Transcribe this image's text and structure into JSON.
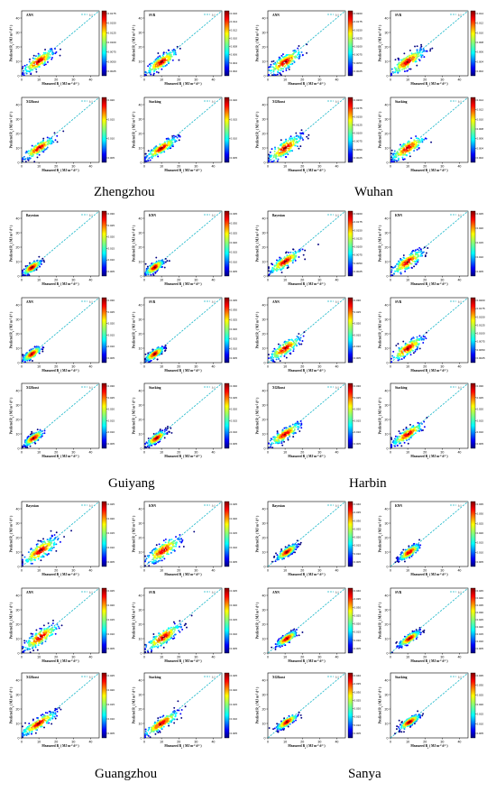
{
  "figure": {
    "axis": {
      "xlabel": "Measured R",
      "xlabel_sub": "s",
      "xlabel_unit": " ( MJ m",
      "xlabel_unit_sup1": "-2",
      "xlabel_unit_mid": " d",
      "xlabel_unit_sup2": "-1",
      "xlabel_end": " )",
      "ylabel": "Predicted R",
      "ylabel_sub": "s",
      "ylabel_unit": " ( MJ m",
      "ylabel_unit_sup1": "-2",
      "ylabel_unit_mid": " d",
      "ylabel_unit_sup2": "-1",
      "ylabel_end": " )",
      "xlim": [
        0,
        45
      ],
      "ylim": [
        0,
        45
      ],
      "xticks": [
        "0",
        "10",
        "20",
        "30",
        "40"
      ],
      "yticks": [
        "0",
        "10",
        "20",
        "30",
        "40"
      ],
      "legend": "1:1",
      "legend_position": "top-right",
      "colormap": [
        "#00007f",
        "#0000ff",
        "#007fff",
        "#00ffff",
        "#7fff7f",
        "#ffff00",
        "#ff7f00",
        "#ff0000",
        "#7f0000"
      ]
    }
  },
  "chart_data": [
    {
      "type": "scatter",
      "city": "Zhengzhou",
      "model": "ANN",
      "title": "ANN",
      "center": [
        10,
        10
      ],
      "spread": [
        4.5,
        2.4
      ],
      "colorbar_ticks": [
        "0.0175",
        "0.0150",
        "0.0125",
        "0.0100",
        "0.0075",
        "0.0050",
        "0.0025"
      ]
    },
    {
      "type": "scatter",
      "city": "Zhengzhou",
      "model": "SVR",
      "title": "SVR",
      "center": [
        10,
        9.5
      ],
      "spread": [
        4.5,
        2.3
      ],
      "colorbar_ticks": [
        "0.016",
        "0.014",
        "0.012",
        "0.010",
        "0.008",
        "0.006",
        "0.004",
        "0.002"
      ]
    },
    {
      "type": "scatter",
      "city": "Zhengzhou",
      "model": "XGBoost",
      "title": "XGBoost",
      "center": [
        10,
        9.8
      ],
      "spread": [
        4.5,
        2.0
      ],
      "colorbar_ticks": [
        "0.020",
        "0.015",
        "0.010",
        "0.005"
      ]
    },
    {
      "type": "scatter",
      "city": "Zhengzhou",
      "model": "Stacking",
      "title": "Stacking",
      "center": [
        10,
        9.8
      ],
      "spread": [
        4.5,
        1.9
      ],
      "colorbar_ticks": [
        "0.020",
        "0.015",
        "0.010",
        "0.005"
      ]
    },
    {
      "type": "scatter",
      "city": "Wuhan",
      "model": "ANN",
      "title": "ANN",
      "center": [
        10,
        9.5
      ],
      "spread": [
        4.8,
        2.6
      ],
      "colorbar_ticks": [
        "0.0200",
        "0.0175",
        "0.0150",
        "0.0125",
        "0.0100",
        "0.0075",
        "0.0050",
        "0.0025"
      ]
    },
    {
      "type": "scatter",
      "city": "Wuhan",
      "model": "SVR",
      "title": "SVR",
      "center": [
        10,
        9.8
      ],
      "spread": [
        4.8,
        2.6
      ],
      "colorbar_ticks": [
        "0.014",
        "0.012",
        "0.010",
        "0.008",
        "0.006",
        "0.004",
        "0.002"
      ]
    },
    {
      "type": "scatter",
      "city": "Wuhan",
      "model": "XGBoost",
      "title": "XGBoost",
      "center": [
        10,
        9.8
      ],
      "spread": [
        4.8,
        2.8
      ],
      "colorbar_ticks": [
        "0.0200",
        "0.0175",
        "0.0150",
        "0.0125",
        "0.0100",
        "0.0075",
        "0.0050",
        "0.0025"
      ]
    },
    {
      "type": "scatter",
      "city": "Wuhan",
      "model": "Stacking",
      "title": "Stacking",
      "center": [
        10,
        9.8
      ],
      "spread": [
        4.8,
        2.6
      ],
      "colorbar_ticks": [
        "0.014",
        "0.012",
        "0.010",
        "0.008",
        "0.006",
        "0.004",
        "0.002"
      ]
    },
    {
      "type": "scatter",
      "city": "Guiyang",
      "model": "Bayesian",
      "title": "Bayesian",
      "center": [
        6,
        6
      ],
      "spread": [
        2.6,
        1.6
      ],
      "colorbar_ticks": [
        "0.030",
        "0.025",
        "0.020",
        "0.015",
        "0.010",
        "0.005"
      ]
    },
    {
      "type": "scatter",
      "city": "Guiyang",
      "model": "KNN",
      "title": "KNN",
      "center": [
        6,
        6
      ],
      "spread": [
        2.6,
        1.7
      ],
      "colorbar_ticks": [
        "0.035",
        "0.030",
        "0.025",
        "0.020",
        "0.015",
        "0.010",
        "0.005"
      ]
    },
    {
      "type": "scatter",
      "city": "Guiyang",
      "model": "ANN",
      "title": "ANN",
      "center": [
        6,
        6
      ],
      "spread": [
        2.6,
        1.6
      ],
      "colorbar_ticks": [
        "0.030",
        "0.025",
        "0.020",
        "0.015",
        "0.010",
        "0.005"
      ]
    },
    {
      "type": "scatter",
      "city": "Guiyang",
      "model": "SVR",
      "title": "SVR",
      "center": [
        6,
        6
      ],
      "spread": [
        2.6,
        1.6
      ],
      "colorbar_ticks": [
        "0.035",
        "0.030",
        "0.025",
        "0.020",
        "0.015",
        "0.010",
        "0.005"
      ]
    },
    {
      "type": "scatter",
      "city": "Guiyang",
      "model": "XGBoost",
      "title": "XGBoost",
      "center": [
        7,
        7
      ],
      "spread": [
        2.8,
        1.6
      ],
      "colorbar_ticks": [
        "0.030",
        "0.025",
        "0.020",
        "0.015",
        "0.010",
        "0.005"
      ]
    },
    {
      "type": "scatter",
      "city": "Guiyang",
      "model": "Stacking",
      "title": "Stacking",
      "center": [
        7,
        7
      ],
      "spread": [
        2.8,
        1.6
      ],
      "colorbar_ticks": [
        "0.030",
        "0.025",
        "0.020",
        "0.015",
        "0.010",
        "0.005"
      ]
    },
    {
      "type": "scatter",
      "city": "Harbin",
      "model": "Bayesian",
      "title": "Bayesian",
      "center": [
        10,
        10
      ],
      "spread": [
        4.5,
        2.2
      ],
      "colorbar_ticks": [
        "0.0200",
        "0.0175",
        "0.0150",
        "0.0125",
        "0.0100",
        "0.0075",
        "0.0050",
        "0.0025"
      ]
    },
    {
      "type": "scatter",
      "city": "Harbin",
      "model": "KNN",
      "title": "KNN",
      "center": [
        10,
        9.8
      ],
      "spread": [
        4.5,
        2.5
      ],
      "colorbar_ticks": [
        "0.025",
        "0.020",
        "0.015",
        "0.010",
        "0.005"
      ]
    },
    {
      "type": "scatter",
      "city": "Harbin",
      "model": "ANN",
      "title": "ANN",
      "center": [
        10,
        9.8
      ],
      "spread": [
        4.5,
        2.4
      ],
      "colorbar_ticks": [
        "0.030",
        "0.025",
        "0.020",
        "0.015",
        "0.010",
        "0.005"
      ]
    },
    {
      "type": "scatter",
      "city": "Harbin",
      "model": "SVR",
      "title": "SVR",
      "center": [
        10,
        9.8
      ],
      "spread": [
        4.5,
        2.4
      ],
      "colorbar_ticks": [
        "0.0200",
        "0.0175",
        "0.0150",
        "0.0125",
        "0.0100",
        "0.0075",
        "0.0050",
        "0.0025"
      ]
    },
    {
      "type": "scatter",
      "city": "Harbin",
      "model": "XGBoost",
      "title": "XGBoost",
      "center": [
        10,
        9.8
      ],
      "spread": [
        4.5,
        2.0
      ],
      "colorbar_ticks": [
        "0.030",
        "0.025",
        "0.020",
        "0.015",
        "0.010",
        "0.005"
      ]
    },
    {
      "type": "scatter",
      "city": "Harbin",
      "model": "Stacking",
      "title": "Stacking",
      "center": [
        10,
        9.8
      ],
      "spread": [
        4.5,
        2.0
      ],
      "colorbar_ticks": [
        "0.030",
        "0.025",
        "0.020",
        "0.015",
        "0.010",
        "0.005"
      ]
    },
    {
      "type": "scatter",
      "city": "Guangzhou",
      "model": "Bayesian",
      "title": "Bayesian",
      "center": [
        11,
        11
      ],
      "spread": [
        5.0,
        2.8
      ],
      "colorbar_ticks": [
        "0.025",
        "0.020",
        "0.015",
        "0.010",
        "0.005"
      ]
    },
    {
      "type": "scatter",
      "city": "Guangzhou",
      "model": "KNN",
      "title": "KNN",
      "center": [
        11,
        11
      ],
      "spread": [
        5.0,
        2.8
      ],
      "colorbar_ticks": [
        "0.025",
        "0.020",
        "0.015",
        "0.010",
        "0.005"
      ]
    },
    {
      "type": "scatter",
      "city": "Guangzhou",
      "model": "ANN",
      "title": "ANN",
      "center": [
        11,
        11
      ],
      "spread": [
        5.0,
        2.6
      ],
      "colorbar_ticks": [
        "0.025",
        "0.020",
        "0.015",
        "0.010",
        "0.005"
      ]
    },
    {
      "type": "scatter",
      "city": "Guangzhou",
      "model": "SVR",
      "title": "SVR",
      "center": [
        11,
        11
      ],
      "spread": [
        5.0,
        2.6
      ],
      "colorbar_ticks": [
        "0.025",
        "0.020",
        "0.015",
        "0.010",
        "0.005"
      ]
    },
    {
      "type": "scatter",
      "city": "Guangzhou",
      "model": "XGBoost",
      "title": "XGBoost",
      "center": [
        10,
        10
      ],
      "spread": [
        5.0,
        2.0
      ],
      "colorbar_ticks": [
        "0.025",
        "0.020",
        "0.015",
        "0.010",
        "0.005"
      ]
    },
    {
      "type": "scatter",
      "city": "Guangzhou",
      "model": "Stacking",
      "title": "Stacking",
      "center": [
        10,
        10
      ],
      "spread": [
        5.0,
        2.0
      ],
      "colorbar_ticks": [
        "0.025",
        "0.020",
        "0.015",
        "0.010",
        "0.005"
      ]
    },
    {
      "type": "scatter",
      "city": "Sanya",
      "model": "Bayesian",
      "title": "Bayesian",
      "center": [
        11,
        10
      ],
      "spread": [
        3.0,
        1.6
      ],
      "colorbar_ticks": [
        "0.040",
        "0.035",
        "0.030",
        "0.025",
        "0.020",
        "0.015",
        "0.010",
        "0.005"
      ]
    },
    {
      "type": "scatter",
      "city": "Sanya",
      "model": "KNN",
      "title": "KNN",
      "center": [
        11,
        10
      ],
      "spread": [
        3.0,
        1.8
      ],
      "colorbar_ticks": [
        "0.035",
        "0.030",
        "0.025",
        "0.020",
        "0.015",
        "0.010",
        "0.005"
      ]
    },
    {
      "type": "scatter",
      "city": "Sanya",
      "model": "ANN",
      "title": "ANN",
      "center": [
        11,
        10
      ],
      "spread": [
        3.0,
        1.6
      ],
      "colorbar_ticks": [
        "0.040",
        "0.035",
        "0.030",
        "0.025",
        "0.020",
        "0.015",
        "0.010",
        "0.005"
      ]
    },
    {
      "type": "scatter",
      "city": "Sanya",
      "model": "SVR",
      "title": "SVR",
      "center": [
        11,
        10
      ],
      "spread": [
        3.0,
        1.6
      ],
      "colorbar_ticks": [
        "0.045",
        "0.040",
        "0.035",
        "0.030",
        "0.025",
        "0.020",
        "0.015",
        "0.010",
        "0.005"
      ]
    },
    {
      "type": "scatter",
      "city": "Sanya",
      "model": "XGBoost",
      "title": "XGBoost",
      "center": [
        11,
        11
      ],
      "spread": [
        3.0,
        1.5
      ],
      "colorbar_ticks": [
        "0.040",
        "0.035",
        "0.030",
        "0.025",
        "0.020",
        "0.015",
        "0.010",
        "0.005"
      ]
    },
    {
      "type": "scatter",
      "city": "Sanya",
      "model": "Stacking",
      "title": "Stacking",
      "center": [
        11,
        11
      ],
      "spread": [
        3.0,
        1.5
      ],
      "colorbar_ticks": [
        "0.035",
        "0.030",
        "0.025",
        "0.020",
        "0.015",
        "0.010",
        "0.005"
      ]
    }
  ],
  "cities": [
    {
      "name": "Zhengzhou"
    },
    {
      "name": "Wuhan"
    },
    {
      "name": "Guiyang"
    },
    {
      "name": "Harbin"
    },
    {
      "name": "Guangzhou"
    },
    {
      "name": "Sanya"
    }
  ]
}
